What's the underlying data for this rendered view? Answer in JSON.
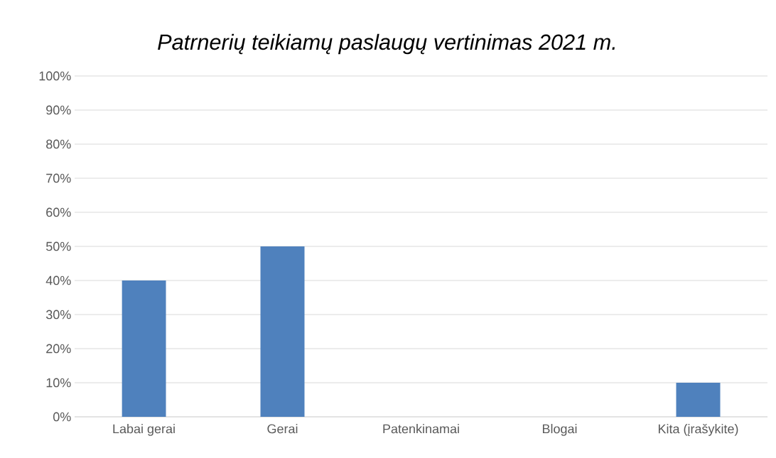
{
  "chart_data": {
    "type": "bar",
    "title": "Patrnerių teikiamų paslaugų vertinimas 2021 m.",
    "categories": [
      "Labai gerai",
      "Gerai",
      "Patenkinamai",
      "Blogai",
      "Kita (įrašykite)"
    ],
    "values": [
      40,
      50,
      0,
      0,
      10
    ],
    "color": "#4f81bd",
    "ylim": [
      0,
      100
    ],
    "yticks": [
      {
        "value": 0,
        "label": "0%"
      },
      {
        "value": 10,
        "label": "10%"
      },
      {
        "value": 20,
        "label": "20%"
      },
      {
        "value": 30,
        "label": "30%"
      },
      {
        "value": 40,
        "label": "40%"
      },
      {
        "value": 50,
        "label": "50%"
      },
      {
        "value": 60,
        "label": "60%"
      },
      {
        "value": 70,
        "label": "70%"
      },
      {
        "value": 80,
        "label": "80%"
      },
      {
        "value": 90,
        "label": "90%"
      },
      {
        "value": 100,
        "label": "100%"
      }
    ],
    "grid": "y"
  }
}
